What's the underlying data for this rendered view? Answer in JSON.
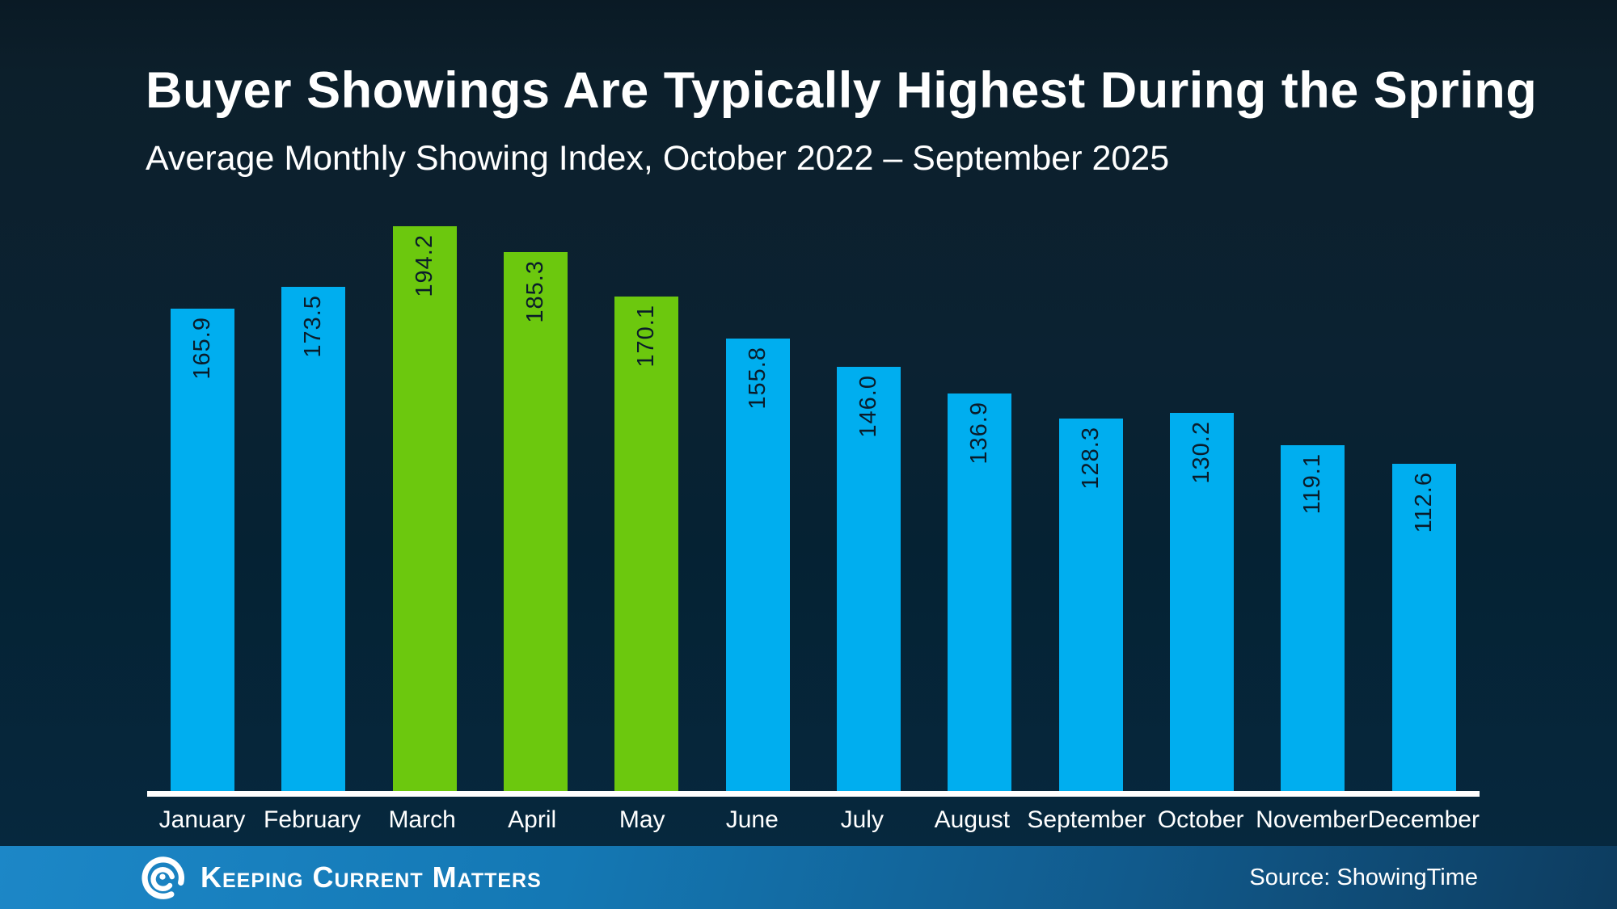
{
  "title": "Buyer Showings Are Typically Highest During the Spring",
  "subtitle": "Average Monthly Showing Index, October 2022 – September 2025",
  "chart_data": {
    "type": "bar",
    "categories": [
      "January",
      "February",
      "March",
      "April",
      "May",
      "June",
      "July",
      "August",
      "September",
      "October",
      "November",
      "December"
    ],
    "values": [
      165.9,
      173.5,
      194.2,
      185.3,
      170.1,
      155.8,
      146.0,
      136.9,
      128.3,
      130.2,
      119.1,
      112.6
    ],
    "bar_colors": [
      "#00AEEF",
      "#00AEEF",
      "#6CC80E",
      "#6CC80E",
      "#6CC80E",
      "#00AEEF",
      "#00AEEF",
      "#00AEEF",
      "#00AEEF",
      "#00AEEF",
      "#00AEEF",
      "#00AEEF"
    ],
    "title": "Buyer Showings Are Typically Highest During the Spring",
    "xlabel": "",
    "ylabel": "",
    "ylim": [
      0,
      211
    ],
    "grid": false,
    "legend": "none",
    "value_labels": "inside-top, rotated 90deg, read bottom-to-top",
    "highlight_note": "Spring months March, April, May shown in green; all others blue"
  },
  "colors": {
    "bar_blue": "#00AEEF",
    "bar_green": "#6CC80E",
    "background_top": "#0a1a25",
    "background_bottom": "#062940",
    "axis_line": "#ffffff",
    "bar_label_text": "#0a1c2a",
    "footer_blue_left": "#1c87c7",
    "footer_blue_right": "#0d3c5f"
  },
  "footer": {
    "logo_text": "Keeping Current Matters",
    "logo_icon": "swirl-icon",
    "source": "Source: ShowingTime"
  }
}
